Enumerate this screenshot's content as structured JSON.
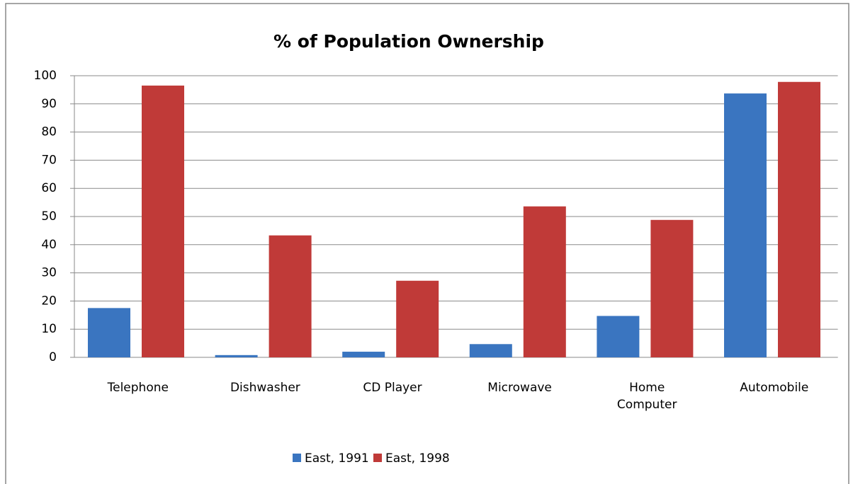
{
  "chart_data": {
    "type": "bar",
    "title": "% of Population Ownership",
    "categories": [
      "Telephone",
      "Dishwasher",
      "CD Player",
      "Microwave",
      "Home Computer",
      "Automobile"
    ],
    "series": [
      {
        "name": "East, 1991",
        "color": "#3a75c0",
        "values": [
          17.5,
          0.8,
          2,
          4.7,
          14.7,
          93.7
        ]
      },
      {
        "name": "East, 1998",
        "color": "#c03a38",
        "values": [
          96.5,
          43.3,
          27.2,
          53.6,
          48.8,
          97.8
        ]
      }
    ],
    "ylim": [
      0,
      100
    ],
    "yticks": [
      0,
      10,
      20,
      30,
      40,
      50,
      60,
      70,
      80,
      90,
      100
    ],
    "grid": true,
    "legend": "bottom"
  }
}
